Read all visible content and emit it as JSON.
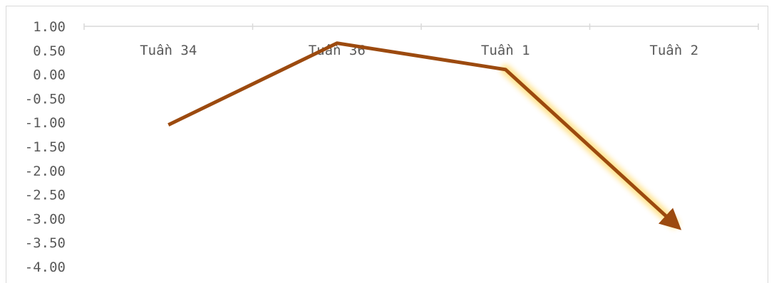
{
  "colors": {
    "line": "#9C4A0F",
    "glow": "#FFC000",
    "axis": "#d9d9d9",
    "text": "#595959"
  },
  "chart_data": {
    "type": "line",
    "title": "",
    "xlabel": "",
    "ylabel": "",
    "categories": [
      "Tuần 34",
      "Tuần 36",
      "Tuần 1",
      "Tuần 2"
    ],
    "series": [
      {
        "values": [
          -1.05,
          0.65,
          0.1,
          -3.1
        ]
      }
    ],
    "ylim": [
      -4.0,
      1.0
    ],
    "yticks": [
      "1.00",
      "0.50",
      "0.00",
      "-0.50",
      "-1.00",
      "-1.50",
      "-2.00",
      "-2.50",
      "-3.00",
      "-3.50",
      "-4.00"
    ],
    "ytick_values": [
      1.0,
      0.5,
      0.0,
      -0.5,
      -1.0,
      -1.5,
      -2.0,
      -2.5,
      -3.0,
      -3.5,
      -4.0
    ],
    "x_axis_position": "top",
    "grid": false,
    "legend": "none",
    "end_marker": "arrow"
  }
}
